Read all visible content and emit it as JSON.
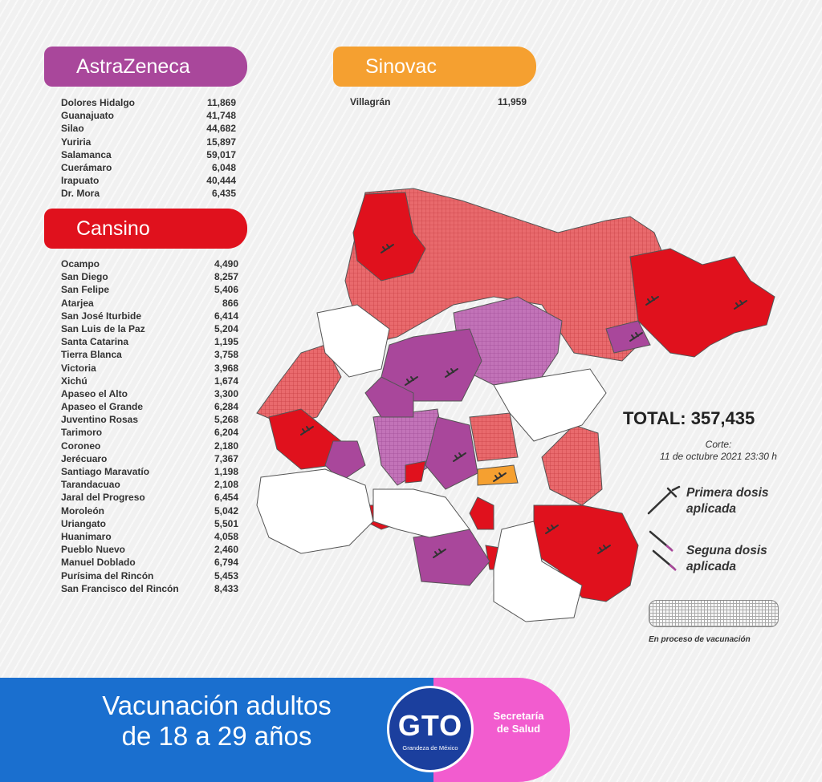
{
  "astrazeneca": {
    "title": "AstraZeneca",
    "rows": [
      {
        "name": "Dolores Hidalgo",
        "value": "11,869"
      },
      {
        "name": "Guanajuato",
        "value": "41,748"
      },
      {
        "name": "Silao",
        "value": "44,682"
      },
      {
        "name": "Yuriria",
        "value": "15,897"
      },
      {
        "name": "Salamanca",
        "value": "59,017"
      },
      {
        "name": "Cuerámaro",
        "value": "6,048"
      },
      {
        "name": "Irapuato",
        "value": "40,444"
      },
      {
        "name": "Dr. Mora",
        "value": "6,435"
      }
    ]
  },
  "sinovac": {
    "title": "Sinovac",
    "rows": [
      {
        "name": "Villagrán",
        "value": "11,959"
      }
    ]
  },
  "cansino": {
    "title": "Cansino",
    "rows": [
      {
        "name": "Ocampo",
        "value": "4,490"
      },
      {
        "name": "San Diego",
        "value": "8,257"
      },
      {
        "name": "San Felipe",
        "value": "5,406"
      },
      {
        "name": "Atarjea",
        "value": "866"
      },
      {
        "name": "San José Iturbide",
        "value": "6,414"
      },
      {
        "name": "San Luis de la Paz",
        "value": "5,204"
      },
      {
        "name": "Santa Catarina",
        "value": "1,195"
      },
      {
        "name": "Tierra Blanca",
        "value": "3,758"
      },
      {
        "name": "Victoria",
        "value": "3,968"
      },
      {
        "name": "Xichú",
        "value": "1,674"
      },
      {
        "name": "Apaseo el Alto",
        "value": "3,300"
      },
      {
        "name": "Apaseo el Grande",
        "value": "6,284"
      },
      {
        "name": "Juventino Rosas",
        "value": "5,268"
      },
      {
        "name": "Tarimoro",
        "value": "6,204"
      },
      {
        "name": "Coroneo",
        "value": "2,180"
      },
      {
        "name": "Jerécuaro",
        "value": "7,367"
      },
      {
        "name": "Santiago Maravatío",
        "value": "1,198"
      },
      {
        "name": "Tarandacuao",
        "value": "2,108"
      },
      {
        "name": "Jaral del Progreso",
        "value": "6,454"
      },
      {
        "name": "Moroleón",
        "value": "5,042"
      },
      {
        "name": "Uriangato",
        "value": "5,501"
      },
      {
        "name": "Huanimaro",
        "value": "4,058"
      },
      {
        "name": "Pueblo Nuevo",
        "value": "2,460"
      },
      {
        "name": "Manuel Doblado",
        "value": "6,794"
      },
      {
        "name": "Purísima del Rincón",
        "value": "5,453"
      },
      {
        "name": "San Francisco del Rincón",
        "value": "8,433"
      }
    ]
  },
  "total": "TOTAL: 357,435",
  "corte": {
    "line1": "Corte:",
    "line2": "11 de octubre 2021  23:30 h"
  },
  "legend": {
    "first_dose": "Primera dosis aplicada",
    "second_dose": "Seguna dosis aplicada",
    "in_process": "En proceso de vacunación"
  },
  "banner": {
    "title_line1": "Vacunación adultos",
    "title_line2": "de 18 a 29 años",
    "logo_text": "GTO",
    "logo_subtext": "Grandeza de México",
    "secretaria_line1": "Secretaría",
    "secretaria_line2": "de Salud"
  },
  "colors": {
    "astrazeneca": "#a9479b",
    "sinovac": "#f5a030",
    "cansino": "#e0111d",
    "banner_blue": "#1a6fcf",
    "banner_pink": "#f25ccf"
  },
  "icons": [
    "syringe-icon"
  ]
}
